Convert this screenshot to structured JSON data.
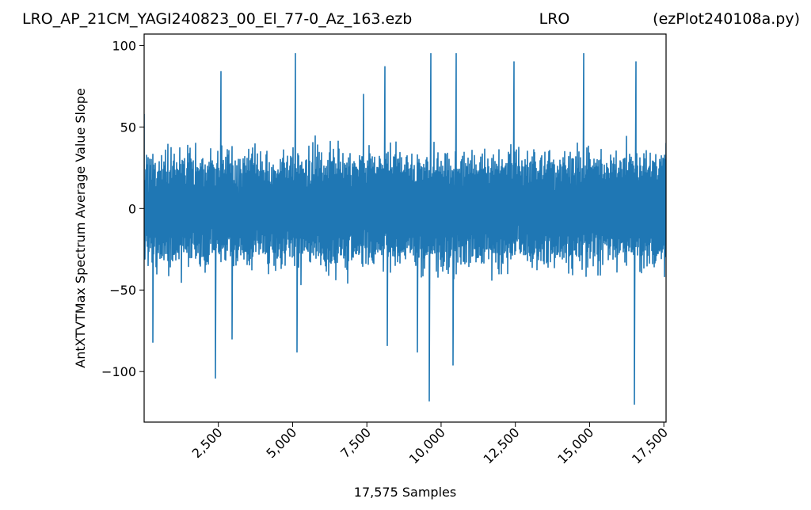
{
  "chart_data": {
    "type": "line",
    "title": {
      "left": "LRO_AP_21CM_YAGI240823_00_El_77-0_Az_163.ezb",
      "center": "LRO",
      "right": "(ezPlot240108a.py)"
    },
    "xlabel": "17,575 Samples",
    "ylabel": "AntXTVTMax Spectrum Average Value Slope",
    "xlim": [
      1,
      17575
    ],
    "ylim": [
      -131,
      107
    ],
    "xticks": [
      {
        "value": 2500,
        "label": "2,500"
      },
      {
        "value": 5000,
        "label": "5,000"
      },
      {
        "value": 7500,
        "label": "7,500"
      },
      {
        "value": 10000,
        "label": "10,000"
      },
      {
        "value": 12500,
        "label": "12,500"
      },
      {
        "value": 15000,
        "label": "15,000"
      },
      {
        "value": 17500,
        "label": "17,500"
      }
    ],
    "yticks": [
      {
        "value": 100,
        "label": "100"
      },
      {
        "value": 50,
        "label": "50"
      },
      {
        "value": 0,
        "label": "0"
      },
      {
        "value": -50,
        "label": "−50"
      },
      {
        "value": -100,
        "label": "−100"
      }
    ],
    "series": [
      {
        "color": "#1f77b4",
        "n_samples": 17575,
        "summary": "noise-like signal centered near 0, typical band about -45 to +50",
        "x": [
          1,
          300,
          2400,
          2600,
          2950,
          5100,
          5150,
          7400,
          8100,
          8200,
          9200,
          9600,
          9650,
          10400,
          10500,
          12450,
          14800,
          16500,
          16550,
          17575
        ],
        "y": [
          58,
          -82,
          -104,
          84,
          -80,
          95,
          -88,
          70,
          87,
          -84,
          -88,
          -118,
          95,
          -96,
          95,
          90,
          95,
          -120,
          90,
          40
        ]
      }
    ],
    "grid": false,
    "legend": "none"
  }
}
